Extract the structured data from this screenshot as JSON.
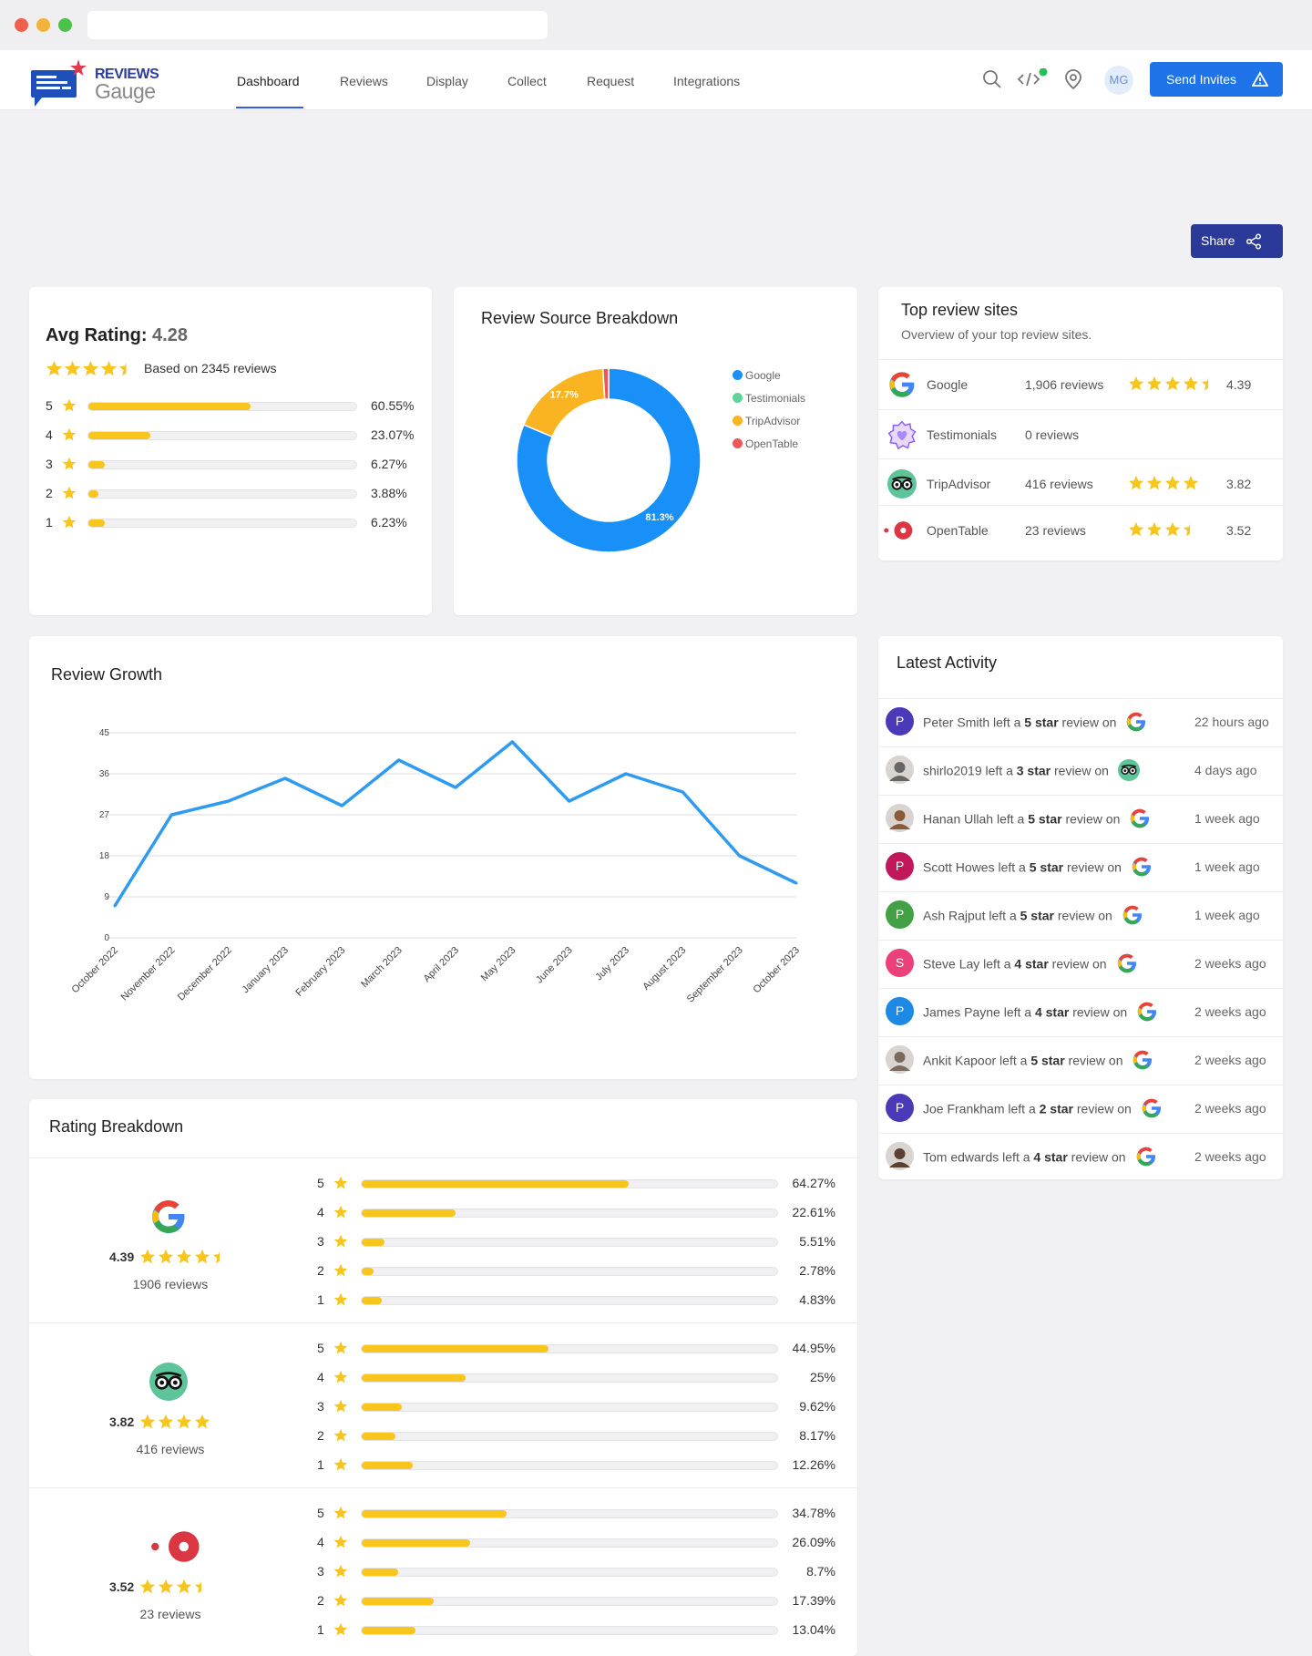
{
  "nav": {
    "logo_line1": "REVIEWS",
    "logo_line2": "Gauge",
    "links": [
      "Dashboard",
      "Reviews",
      "Display",
      "Collect",
      "Request",
      "Integrations"
    ],
    "avatar_initials": "MG",
    "send_invites": "Send Invites"
  },
  "share": "Share",
  "avg": {
    "label": "Avg Rating:",
    "value": "4.28",
    "based_on": "Based on 2345 reviews",
    "stars": 4.28,
    "rows": [
      {
        "star": "5",
        "pct": "60.55%",
        "fill": 60.55
      },
      {
        "star": "4",
        "pct": "23.07%",
        "fill": 23.07
      },
      {
        "star": "3",
        "pct": "6.27%",
        "fill": 6.27
      },
      {
        "star": "2",
        "pct": "3.88%",
        "fill": 3.88
      },
      {
        "star": "1",
        "pct": "6.23%",
        "fill": 6.23
      }
    ]
  },
  "source": {
    "title": "Review Source Breakdown",
    "legend": [
      {
        "name": "Google",
        "color": "#1890f8"
      },
      {
        "name": "Testimonials",
        "color": "#5fd49a"
      },
      {
        "name": "TripAdvisor",
        "color": "#fbb421"
      },
      {
        "name": "OpenTable",
        "color": "#e85a5a"
      }
    ]
  },
  "chart_data": [
    {
      "type": "pie",
      "labels": [
        "Google",
        "Testimonials",
        "TripAdvisor",
        "OpenTable"
      ],
      "values": [
        81.3,
        0,
        17.7,
        1.0
      ],
      "data_labels": [
        "81.3%",
        "",
        "17.7%",
        ""
      ],
      "colors": [
        "#1890f8",
        "#5fd49a",
        "#fbb421",
        "#e85a5a"
      ],
      "donut": true,
      "legend": "right"
    },
    {
      "type": "line",
      "title": "Review Growth",
      "x": [
        "October 2022",
        "November 2022",
        "December 2022",
        "January 2023",
        "February 2023",
        "March 2023",
        "April 2023",
        "May 2023",
        "June 2023",
        "July 2023",
        "August 2023",
        "September 2023",
        "October 2023"
      ],
      "y": [
        7,
        27,
        30,
        35,
        29,
        39,
        33,
        43,
        30,
        36,
        32,
        18,
        12
      ],
      "yticks": [
        0,
        9,
        18,
        27,
        36,
        45
      ],
      "ylim": [
        0,
        45
      ],
      "grid": true,
      "color": "#2f9bf0"
    }
  ],
  "top_sites": {
    "title": "Top review sites",
    "subtitle": "Overview of your top review sites.",
    "rows": [
      {
        "name": "Google",
        "reviews": "1,906 reviews",
        "rating": "4.39",
        "stars": 4.39,
        "icon": "google-icon"
      },
      {
        "name": "Testimonials",
        "reviews": "0 reviews",
        "rating": "",
        "stars": 0,
        "icon": "testimonials-icon"
      },
      {
        "name": "TripAdvisor",
        "reviews": "416 reviews",
        "rating": "3.82",
        "stars": 4,
        "icon": "tripadvisor-icon"
      },
      {
        "name": "OpenTable",
        "reviews": "23 reviews",
        "rating": "3.52",
        "stars": 3.52,
        "icon": "opentable-icon"
      }
    ]
  },
  "growth": {
    "title": "Review Growth"
  },
  "activity": {
    "title": "Latest Activity",
    "items": [
      {
        "name": "Peter Smith",
        "mid": " left a ",
        "rating": "5 star",
        "tail": " review on",
        "time": "22 hours ago",
        "initial": "P",
        "color": "#4a3ab8",
        "site": "google-icon"
      },
      {
        "name": "shirlo2019",
        "mid": " left a ",
        "rating": "3 star",
        "tail": " review on",
        "time": "4 days ago",
        "initial": "",
        "color": "#666",
        "site": "tripadvisor-icon"
      },
      {
        "name": "Hanan Ullah",
        "mid": " left a ",
        "rating": "5 star",
        "tail": " review on",
        "time": "1 week ago",
        "initial": "",
        "color": "#8a5a3a",
        "site": "google-icon"
      },
      {
        "name": "Scott Howes",
        "mid": " left a ",
        "rating": "5 star",
        "tail": " review on",
        "time": "1 week ago",
        "initial": "P",
        "color": "#c2185b",
        "site": "google-icon"
      },
      {
        "name": "Ash Rajput",
        "mid": " left a ",
        "rating": "5 star",
        "tail": " review on",
        "time": "1 week ago",
        "initial": "P",
        "color": "#43a047",
        "site": "google-icon"
      },
      {
        "name": "Steve Lay",
        "mid": " left a ",
        "rating": "4 star",
        "tail": " review on",
        "time": "2 weeks ago",
        "initial": "S",
        "color": "#ec407a",
        "site": "google-icon"
      },
      {
        "name": "James Payne",
        "mid": " left a ",
        "rating": "4 star",
        "tail": " review on",
        "time": "2 weeks ago",
        "initial": "P",
        "color": "#1e88e5",
        "site": "google-icon"
      },
      {
        "name": "Ankit Kapoor",
        "mid": " left a ",
        "rating": "5 star",
        "tail": " review on",
        "time": "2 weeks ago",
        "initial": "",
        "color": "#7a6a60",
        "site": "google-icon"
      },
      {
        "name": "Joe Frankham",
        "mid": " left a ",
        "rating": "2 star",
        "tail": " review on",
        "time": "2 weeks ago",
        "initial": "P",
        "color": "#4a3ab8",
        "site": "google-icon"
      },
      {
        "name": "Tom edwards",
        "mid": " left a ",
        "rating": "4 star",
        "tail": " review on",
        "time": "2 weeks ago",
        "initial": "",
        "color": "#5a4030",
        "site": "google-icon"
      }
    ]
  },
  "breakdown": {
    "title": "Rating Breakdown",
    "sites": [
      {
        "icon": "google-icon",
        "rating": "4.39",
        "stars": 4.39,
        "reviews": "1906 reviews",
        "rows": [
          {
            "star": "5",
            "pct": "64.27%",
            "fill": 64.27
          },
          {
            "star": "4",
            "pct": "22.61%",
            "fill": 22.61
          },
          {
            "star": "3",
            "pct": "5.51%",
            "fill": 5.51
          },
          {
            "star": "2",
            "pct": "2.78%",
            "fill": 2.78
          },
          {
            "star": "1",
            "pct": "4.83%",
            "fill": 4.83
          }
        ]
      },
      {
        "icon": "tripadvisor-icon",
        "rating": "3.82",
        "stars": 4,
        "reviews": "416 reviews",
        "rows": [
          {
            "star": "5",
            "pct": "44.95%",
            "fill": 44.95
          },
          {
            "star": "4",
            "pct": "25%",
            "fill": 25
          },
          {
            "star": "3",
            "pct": "9.62%",
            "fill": 9.62
          },
          {
            "star": "2",
            "pct": "8.17%",
            "fill": 8.17
          },
          {
            "star": "1",
            "pct": "12.26%",
            "fill": 12.26
          }
        ]
      },
      {
        "icon": "opentable-icon",
        "rating": "3.52",
        "stars": 3.52,
        "reviews": "23 reviews",
        "rows": [
          {
            "star": "5",
            "pct": "34.78%",
            "fill": 34.78
          },
          {
            "star": "4",
            "pct": "26.09%",
            "fill": 26.09
          },
          {
            "star": "3",
            "pct": "8.7%",
            "fill": 8.7
          },
          {
            "star": "2",
            "pct": "17.39%",
            "fill": 17.39
          },
          {
            "star": "1",
            "pct": "13.04%",
            "fill": 13.04
          }
        ]
      }
    ]
  }
}
